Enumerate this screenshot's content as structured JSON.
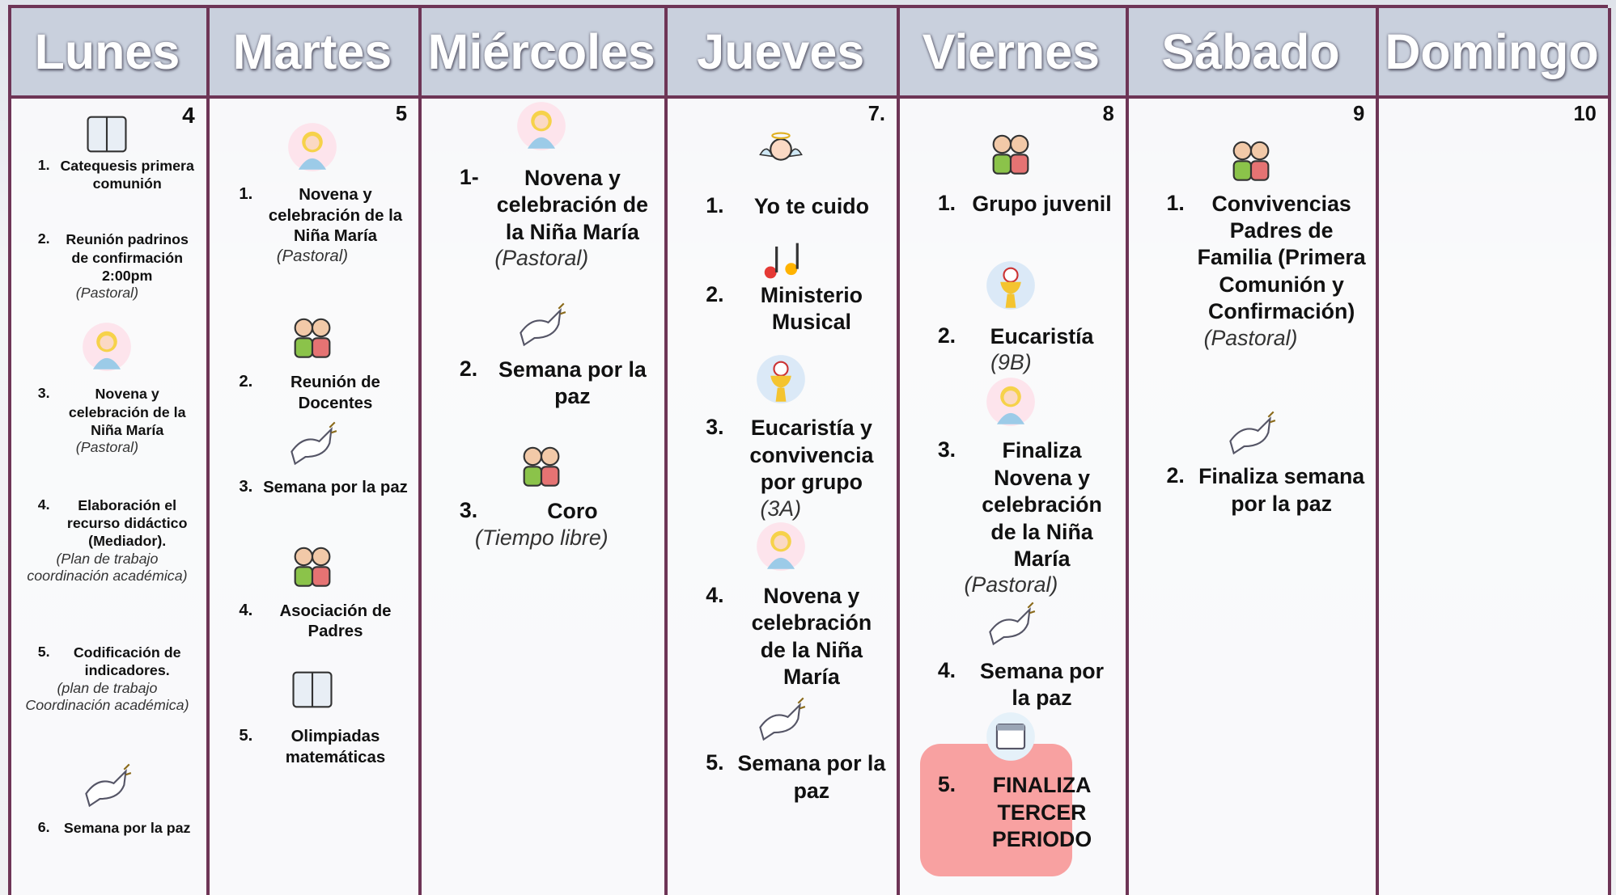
{
  "days": [
    "Lunes",
    "Martes",
    "Miércoles",
    "Jueves",
    "Viernes",
    "Sábado",
    "Domingo"
  ],
  "cells": [
    {
      "date": "4",
      "items": [
        {
          "num": "1.",
          "text": "Catequesis primera comunión"
        },
        {
          "num": "2.",
          "text": "Reunión padrinos de confirmación 2:00pm",
          "note": "(Pastoral)"
        },
        {
          "num": "3.",
          "text": "Novena y celebración de la Niña María",
          "note": "(Pastoral)"
        },
        {
          "num": "4.",
          "text": "Elaboración el recurso didáctico (Mediador).",
          "note": "(Plan de trabajo coordinación académica)"
        },
        {
          "num": "5.",
          "text": "Codificación de indicadores.",
          "note": "(plan de trabajo Coordinación académica)"
        },
        {
          "num": "6.",
          "text": "Semana por la paz"
        }
      ]
    },
    {
      "date": "5",
      "items": [
        {
          "num": "1.",
          "text": "Novena y celebración de la Niña María",
          "note": "(Pastoral)"
        },
        {
          "num": "2.",
          "text": "Reunión de Docentes"
        },
        {
          "num": "3.",
          "text": "Semana por la paz"
        },
        {
          "num": "4.",
          "text": "Asociación de Padres"
        },
        {
          "num": "5.",
          "text": "Olimpiadas matemáticas"
        }
      ]
    },
    {
      "items": [
        {
          "num": "1-",
          "text": "Novena y celebración de la Niña María",
          "note": "(Pastoral)"
        },
        {
          "num": "2.",
          "text": "Semana por la paz"
        },
        {
          "num": "3.",
          "text": "Coro",
          "note": "(Tiempo libre)"
        }
      ]
    },
    {
      "date": "7.",
      "items": [
        {
          "num": "1.",
          "text": "Yo te cuido"
        },
        {
          "num": "2.",
          "text": "Ministerio Musical"
        },
        {
          "num": "3.",
          "text": "Eucaristía y convivencia por grupo",
          "note": "(3A)"
        },
        {
          "num": "4.",
          "text": "Novena y celebración de la Niña María"
        },
        {
          "num": "5.",
          "text": "Semana por la paz"
        }
      ]
    },
    {
      "date": "8",
      "items": [
        {
          "num": "1.",
          "text": "Grupo juvenil"
        },
        {
          "num": "2.",
          "text": "Eucaristía",
          "note": "(9B)"
        },
        {
          "num": "3.",
          "text": "Finaliza Novena y celebración de la Niña María",
          "note": "(Pastoral)"
        },
        {
          "num": "4.",
          "text": "Semana por la paz"
        },
        {
          "num": "5.",
          "text": "FINALIZA TERCER PERIODO"
        }
      ]
    },
    {
      "date": "9",
      "items": [
        {
          "num": "1.",
          "text": "Convivencias Padres de Familia (Primera Comunión y Confirmación)",
          "note": "(Pastoral)"
        },
        {
          "num": "2.",
          "text": "Finaliza semana por la paz"
        }
      ]
    },
    {
      "date": "10",
      "items": []
    }
  ]
}
